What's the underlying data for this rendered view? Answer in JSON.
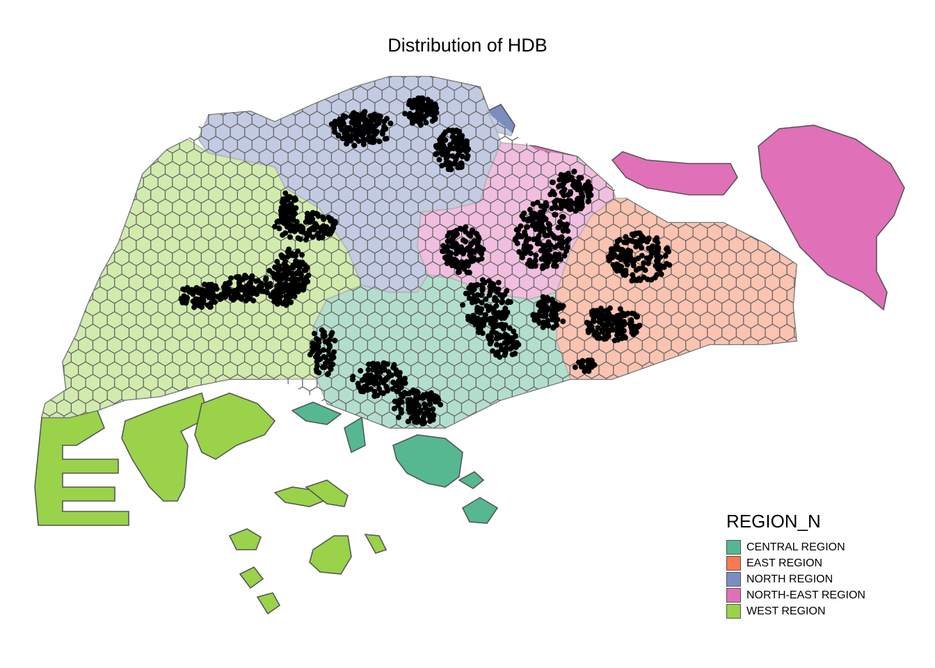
{
  "title": "Distribution of HDB",
  "legend": {
    "title": "REGION_N",
    "items": [
      {
        "key": "central",
        "label": "CENTRAL REGION",
        "color": "#55B891"
      },
      {
        "key": "east",
        "label": "EAST REGION",
        "color": "#F77A50"
      },
      {
        "key": "north",
        "label": "NORTH REGION",
        "color": "#7B8DC0"
      },
      {
        "key": "northeast",
        "label": "NORTH-EAST REGION",
        "color": "#E070B8"
      },
      {
        "key": "west",
        "label": "WEST REGION",
        "color": "#9AD24A"
      }
    ]
  },
  "styles": {
    "outline_color": "#555555",
    "hex_fill": "#ffffff",
    "hex_outline": "#666666",
    "point_color": "#000000"
  }
}
